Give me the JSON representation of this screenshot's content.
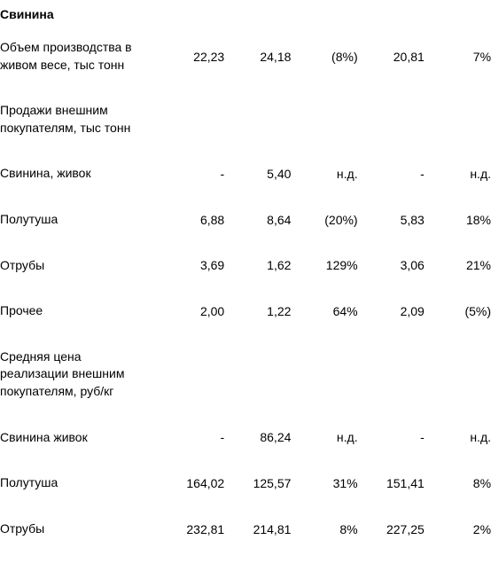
{
  "section_title": "Свинина",
  "rows": [
    {
      "label": "Объем производства в живом весе, тыс тонн",
      "c1": "22,23",
      "c2": "24,18",
      "c3": "(8%)",
      "c4": "20,81",
      "c5": "7%"
    },
    {
      "label": "Продажи внешним покупателям, тыс тонн",
      "c1": "",
      "c2": "",
      "c3": "",
      "c4": "",
      "c5": ""
    },
    {
      "label": "Свинина, живок",
      "c1": "-",
      "c2": "5,40",
      "c3": "н.д.",
      "c4": "-",
      "c5": "н.д."
    },
    {
      "label": "Полутуша",
      "c1": "6,88",
      "c2": "8,64",
      "c3": "(20%)",
      "c4": "5,83",
      "c5": "18%"
    },
    {
      "label": "Отрубы",
      "c1": "3,69",
      "c2": "1,62",
      "c3": "129%",
      "c4": "3,06",
      "c5": "21%"
    },
    {
      "label": "Прочее",
      "c1": "2,00",
      "c2": "1,22",
      "c3": "64%",
      "c4": "2,09",
      "c5": "(5%)"
    },
    {
      "label": "Средняя цена реализации внешним покупателям, руб/кг",
      "c1": "",
      "c2": "",
      "c3": "",
      "c4": "",
      "c5": ""
    },
    {
      "label": "Свинина живок",
      "c1": "-",
      "c2": "86,24",
      "c3": "н.д.",
      "c4": "-",
      "c5": "н.д."
    },
    {
      "label": "Полутуша",
      "c1": "164,02",
      "c2": "125,57",
      "c3": "31%",
      "c4": "151,41",
      "c5": "8%"
    },
    {
      "label": "Отрубы",
      "c1": "232,81",
      "c2": "214,81",
      "c3": "8%",
      "c4": "227,25",
      "c5": "2%"
    }
  ]
}
